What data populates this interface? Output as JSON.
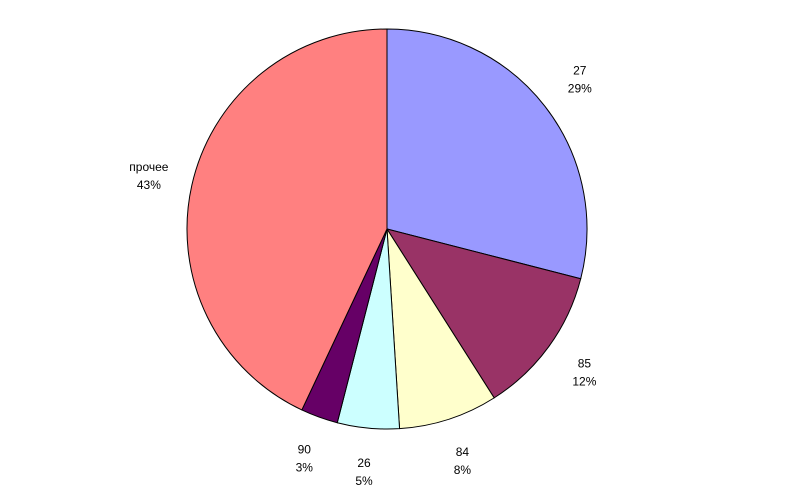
{
  "chart_data": {
    "type": "pie",
    "title": "",
    "start_angle_deg": 0,
    "direction": "clockwise",
    "border_color": "#000000",
    "slices": [
      {
        "category": "27",
        "value": 29,
        "percent_label": "29%",
        "color": "#9999FF"
      },
      {
        "category": "85",
        "value": 12,
        "percent_label": "12%",
        "color": "#993366"
      },
      {
        "category": "84",
        "value": 8,
        "percent_label": "8%",
        "color": "#FFFFCC"
      },
      {
        "category": "26",
        "value": 5,
        "percent_label": "5%",
        "color": "#CCFFFF"
      },
      {
        "category": "90",
        "value": 3,
        "percent_label": "3%",
        "color": "#660066"
      },
      {
        "category": "прочее",
        "value": 43,
        "percent_label": "43%",
        "color": "#FF8080"
      }
    ]
  }
}
